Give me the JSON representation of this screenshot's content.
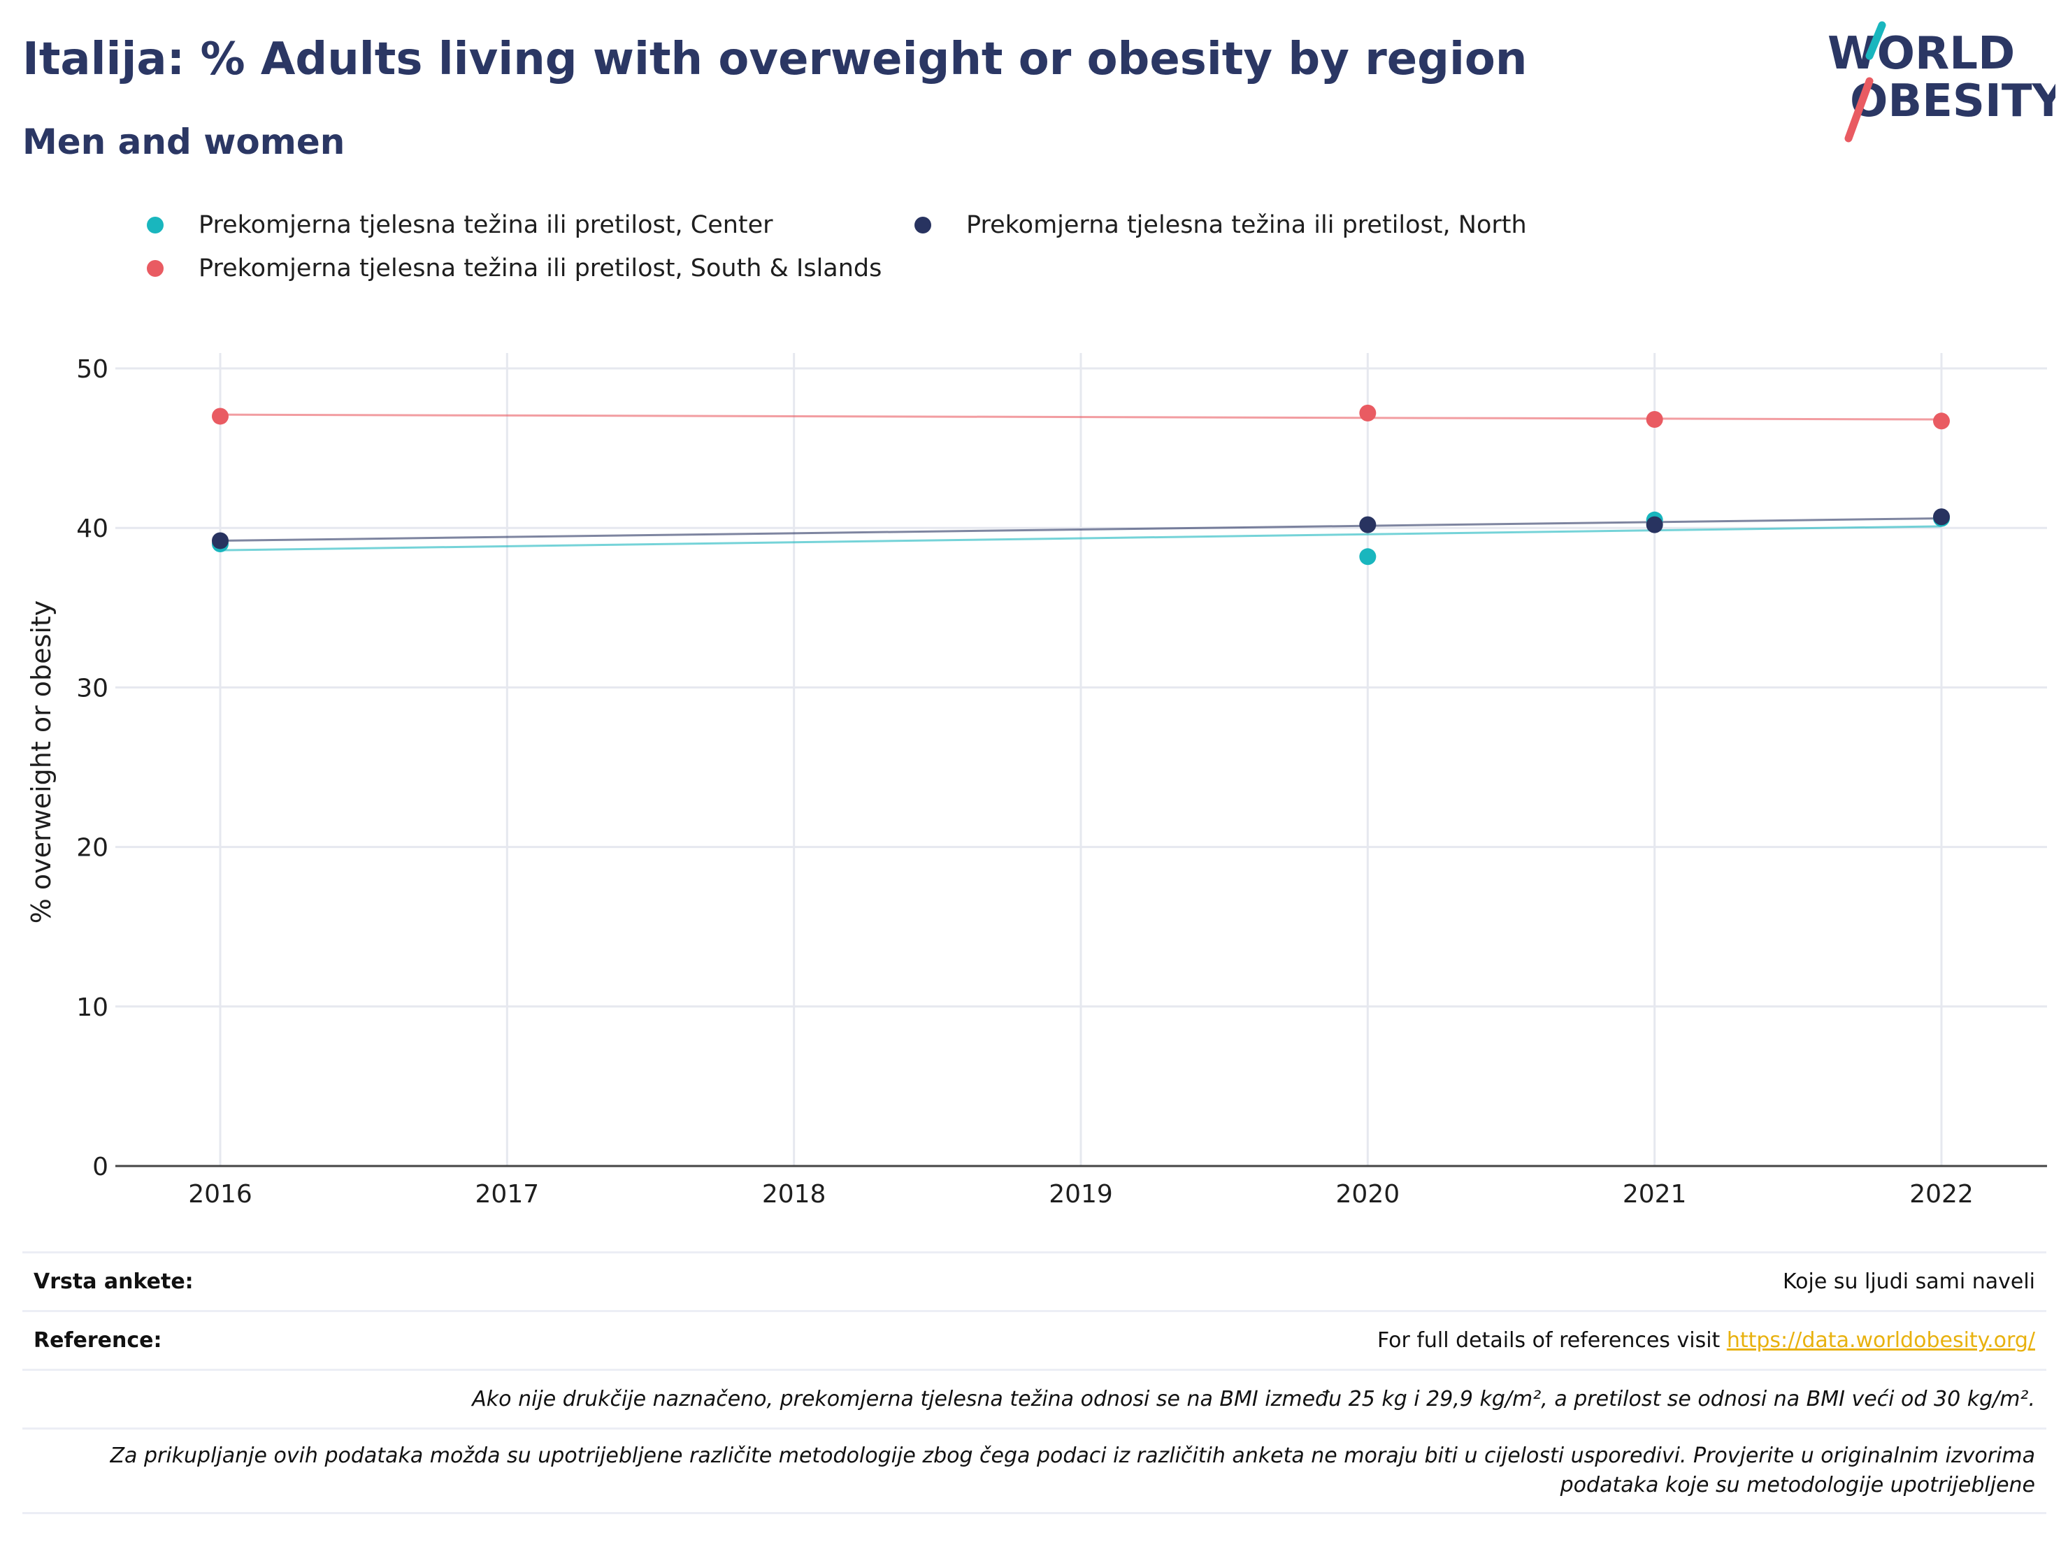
{
  "header": {
    "title": "Italija: % Adults living with overweight or obesity by region",
    "subtitle": "Men and women",
    "logo_line1": "WORLD",
    "logo_line2": "OBESITY"
  },
  "colors": {
    "title": "#2b3764",
    "center": "#19b6be",
    "north": "#283360",
    "south": "#e95b62",
    "grid": "#e6e8ef",
    "link": "#e8b10e"
  },
  "chart_data": {
    "type": "scatter",
    "x_ticks": [
      "2016",
      "2017",
      "2018",
      "2019",
      "2020",
      "2021",
      "2022"
    ],
    "xlim": [
      2016,
      2022
    ],
    "ylabel": "% overweight or obesity",
    "ylim": [
      0,
      50
    ],
    "y_ticks": [
      0,
      10,
      20,
      30,
      40,
      50
    ],
    "grid": true,
    "legend_position": "top",
    "trendlines": true,
    "series": [
      {
        "name": "Prekomjerna tjelesna težina ili pretilost, Center",
        "color": "#19b6be",
        "x": [
          2016,
          2020,
          2021,
          2022
        ],
        "y": [
          39.0,
          38.2,
          40.5,
          40.6
        ],
        "trend": [
          38.6,
          40.1
        ]
      },
      {
        "name": "Prekomjerna tjelesna težina ili pretilost, North",
        "color": "#283360",
        "x": [
          2016,
          2020,
          2021,
          2022
        ],
        "y": [
          39.2,
          40.2,
          40.2,
          40.7
        ],
        "trend": [
          39.2,
          40.6
        ]
      },
      {
        "name": "Prekomjerna tjelesna težina ili pretilost, South & Islands",
        "color": "#e95b62",
        "x": [
          2016,
          2020,
          2021,
          2022
        ],
        "y": [
          47.0,
          47.2,
          46.8,
          46.7
        ],
        "trend": [
          47.1,
          46.8
        ]
      }
    ]
  },
  "footer": {
    "survey_label": "Vrsta ankete:",
    "survey_value": "Koje su ljudi sami naveli",
    "reference_label": "Reference:",
    "reference_text": "For full details of references visit",
    "reference_link": "https://data.worldobesity.org/",
    "note1": "Ako nije drukčije naznačeno, prekomjerna tjelesna težina odnosi se na BMI između 25 kg i 29,9 kg/m², a pretilost se odnosi na BMI veći od 30 kg/m².",
    "note2_line1": "Za prikupljanje ovih podataka možda su upotrijebljene različite metodologije zbog čega podaci iz različitih anketa ne moraju biti u cijelosti usporedivi. Provjerite u originalnim izvorima",
    "note2_line2": "podataka koje su metodologije upotrijebljene"
  }
}
